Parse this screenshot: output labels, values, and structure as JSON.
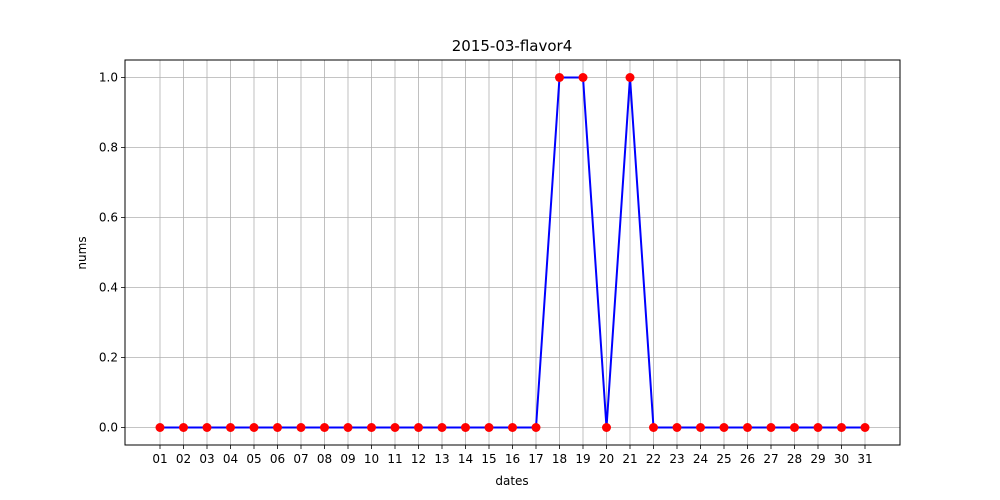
{
  "chart_data": {
    "type": "line",
    "title": "2015-03-flavor4",
    "xlabel": "dates",
    "ylabel": "nums",
    "categories": [
      "01",
      "02",
      "03",
      "04",
      "05",
      "06",
      "07",
      "08",
      "09",
      "10",
      "11",
      "12",
      "13",
      "14",
      "15",
      "16",
      "17",
      "18",
      "19",
      "20",
      "21",
      "22",
      "23",
      "24",
      "25",
      "26",
      "27",
      "28",
      "29",
      "30",
      "31"
    ],
    "series": [
      {
        "values": [
          0,
          0,
          0,
          0,
          0,
          0,
          0,
          0,
          0,
          0,
          0,
          0,
          0,
          0,
          0,
          0,
          0,
          1,
          1,
          0,
          1,
          0,
          0,
          0,
          0,
          0,
          0,
          0,
          0,
          0,
          0
        ],
        "line_color": "#0000ff",
        "marker_color": "#ff0000"
      }
    ],
    "ylim": [
      -0.05,
      1.05
    ],
    "yticks": [
      "0.0",
      "0.2",
      "0.4",
      "0.6",
      "0.8",
      "1.0"
    ],
    "grid": true,
    "legend": "none"
  }
}
